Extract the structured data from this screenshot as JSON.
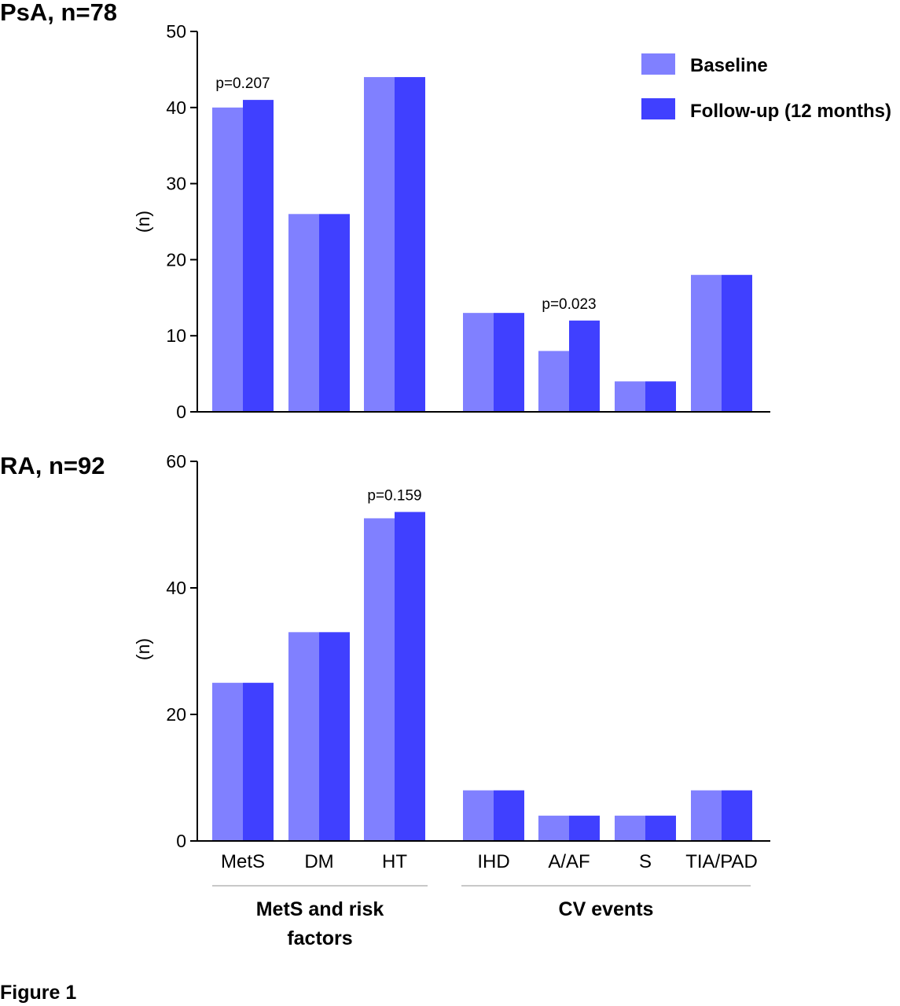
{
  "figure_caption": "Figure 1",
  "legend": [
    {
      "label": "Baseline",
      "color": "#8080ff"
    },
    {
      "label": "Follow-up (12 months)",
      "color": "#4040ff"
    }
  ],
  "group_labels": [
    {
      "lines": [
        "MetS and risk",
        "factors"
      ]
    },
    {
      "lines": [
        "CV events"
      ]
    }
  ],
  "chart_data": [
    {
      "type": "bar",
      "title": "PsA, n=78",
      "ylabel": "(n)",
      "ylim": [
        0,
        50
      ],
      "yticks": [
        0,
        10,
        20,
        30,
        40,
        50
      ],
      "categories": [
        "MetS",
        "DM",
        "HT",
        "IHD",
        "A/AF",
        "S",
        "TIA/PAD"
      ],
      "series": [
        {
          "name": "Baseline",
          "values": [
            40,
            26,
            44,
            13,
            8,
            4,
            18
          ]
        },
        {
          "name": "Follow-up (12 months)",
          "values": [
            41,
            26,
            44,
            13,
            12,
            4,
            18
          ]
        }
      ],
      "annotations": [
        {
          "category": "MetS",
          "text": "p=0.207"
        },
        {
          "category": "A/AF",
          "text": "p=0.023"
        }
      ],
      "legend_position": "top-right",
      "grid": false
    },
    {
      "type": "bar",
      "title": "RA, n=92",
      "ylabel": "(n)",
      "ylim": [
        0,
        60
      ],
      "yticks": [
        0,
        20,
        40,
        60
      ],
      "categories": [
        "MetS",
        "DM",
        "HT",
        "IHD",
        "A/AF",
        "S",
        "TIA/PAD"
      ],
      "series": [
        {
          "name": "Baseline",
          "values": [
            25,
            33,
            51,
            8,
            4,
            4,
            8
          ]
        },
        {
          "name": "Follow-up (12 months)",
          "values": [
            25,
            33,
            52,
            8,
            4,
            4,
            8
          ]
        }
      ],
      "annotations": [
        {
          "category": "HT",
          "text": "p=0.159"
        }
      ],
      "grid": false
    }
  ]
}
